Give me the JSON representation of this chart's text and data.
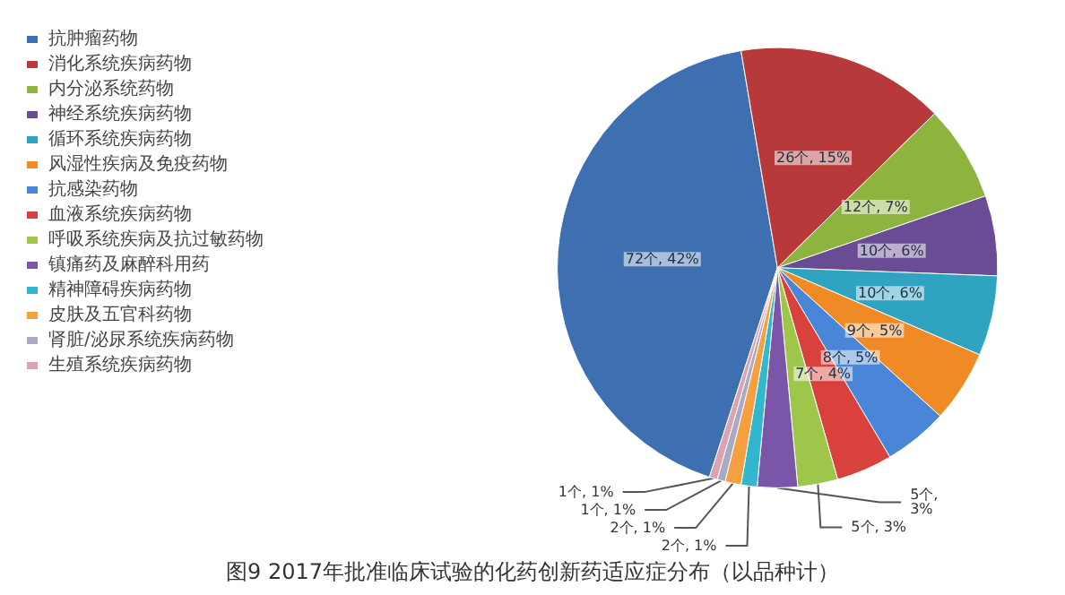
{
  "chart_data": {
    "type": "pie",
    "title": "图9 2017年批准临床试验的化药创新药适应症分布（以品种计）",
    "categories": [
      "抗肿瘤药物",
      "消化系统疾病药物",
      "内分泌系统药物",
      "神经系统疾病药物",
      "循环系统疾病药物",
      "风湿性疾病及免疫药物",
      "抗感染药物",
      "血液系统疾病药物",
      "呼吸系统疾病及抗过敏药物",
      "镇痛药及麻醉科用药",
      "精神障碍疾病药物",
      "皮肤及五官科药物",
      "肾脏/泌尿系统疾病药物",
      "生殖系统疾病药物"
    ],
    "values": [
      72,
      26,
      12,
      10,
      10,
      9,
      8,
      7,
      5,
      5,
      2,
      2,
      1,
      1
    ],
    "value_labels": [
      "72个, 42%",
      "26个, 15%",
      "12个, 7%",
      "10个, 6%",
      "10个, 6%",
      "9个, 5%",
      "8个, 5%",
      "7个, 4%",
      "5个, 3%",
      "5个,\n3%",
      "2个, 1%",
      "2个, 1%",
      "1个, 1%",
      "1个, 1%"
    ],
    "colors": [
      "#3e6fb0",
      "#b8393a",
      "#8fb33f",
      "#6a4c94",
      "#2ea4c0",
      "#f08a24",
      "#4a86d8",
      "#d9413d",
      "#9dc64a",
      "#7a55a8",
      "#33b6cf",
      "#f5a040",
      "#a9a9c4",
      "#d9a3b0"
    ],
    "legend": "left"
  }
}
